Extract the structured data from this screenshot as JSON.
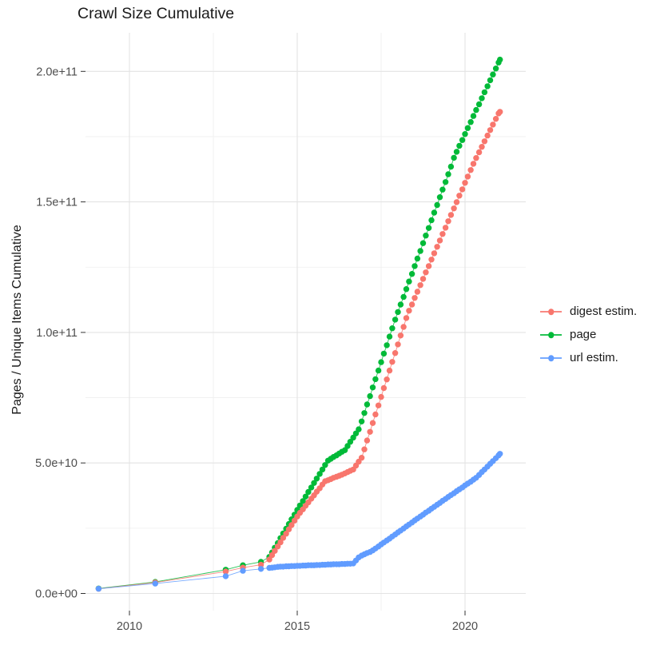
{
  "title": "Crawl Size Cumulative",
  "axes": {
    "y_title": "Pages / Unique Items Cumulative",
    "x_title": "",
    "y_ticks": [
      {
        "v": 0,
        "label": "0.0e+00"
      },
      {
        "v": 50,
        "label": "5.0e+10"
      },
      {
        "v": 100,
        "label": "1.0e+11"
      },
      {
        "v": 150,
        "label": "1.5e+11"
      },
      {
        "v": 200,
        "label": "2.0e+11"
      }
    ],
    "y_minor": [
      25,
      75,
      125,
      175
    ],
    "x_ticks": [
      {
        "v": 2010,
        "label": "2010"
      },
      {
        "v": 2015,
        "label": "2015"
      },
      {
        "v": 2020,
        "label": "2020"
      }
    ],
    "x_minor": [
      2012.5,
      2017.5
    ]
  },
  "legend": {
    "entries": [
      {
        "label": "digest estim.",
        "color": "#F8766D"
      },
      {
        "label": "page",
        "color": "#00BA38"
      },
      {
        "label": "url estim.",
        "color": "#619CFF"
      }
    ]
  },
  "chart_data": {
    "type": "scatter",
    "style": "points connected by thin lines (ggplot geom_point + geom_line)",
    "title": "Crawl Size Cumulative",
    "xlabel": "",
    "ylabel": "Pages / Unique Items Cumulative",
    "x_unit": "year (decimal)",
    "y_value_unit": "billions of items (1e9); axis labels shown in scientific notation",
    "xlim": [
      2008.7,
      2021.9
    ],
    "ylim_billions": [
      0,
      215
    ],
    "grid": true,
    "legend_position": "right-center",
    "draw_order": [
      "page",
      "digest estim.",
      "url estim."
    ],
    "series": [
      {
        "name": "digest estim.",
        "color": "#F8766D",
        "points": [
          [
            2009.08,
            1.8
          ],
          [
            2010.77,
            4.2
          ],
          [
            2012.87,
            8.4
          ],
          [
            2013.38,
            9.9
          ],
          [
            2013.92,
            11.0
          ],
          [
            2014.17,
            13.0
          ],
          [
            2014.25,
            14.7
          ],
          [
            2014.33,
            16.3
          ],
          [
            2014.42,
            18.0
          ],
          [
            2014.5,
            19.6
          ],
          [
            2014.58,
            21.3
          ],
          [
            2014.67,
            22.9
          ],
          [
            2014.75,
            24.6
          ],
          [
            2014.83,
            26.2
          ],
          [
            2014.92,
            27.9
          ],
          [
            2015.0,
            29.5
          ],
          [
            2015.08,
            30.9
          ],
          [
            2015.17,
            32.2
          ],
          [
            2015.25,
            33.6
          ],
          [
            2015.33,
            34.9
          ],
          [
            2015.42,
            36.3
          ],
          [
            2015.5,
            37.6
          ],
          [
            2015.58,
            39.0
          ],
          [
            2015.67,
            40.3
          ],
          [
            2015.75,
            41.7
          ],
          [
            2015.83,
            43.0
          ],
          [
            2015.92,
            43.4
          ],
          [
            2016.0,
            43.8
          ],
          [
            2016.08,
            44.3
          ],
          [
            2016.17,
            44.7
          ],
          [
            2016.25,
            45.1
          ],
          [
            2016.33,
            45.5
          ],
          [
            2016.42,
            46.0
          ],
          [
            2016.5,
            46.5
          ],
          [
            2016.58,
            47.0
          ],
          [
            2016.67,
            47.5
          ],
          [
            2016.75,
            49.0
          ],
          [
            2016.83,
            50.5
          ],
          [
            2016.92,
            52.0
          ],
          [
            2017.0,
            55.2
          ],
          [
            2017.08,
            58.6
          ],
          [
            2017.17,
            61.9
          ],
          [
            2017.25,
            65.3
          ],
          [
            2017.33,
            68.6
          ],
          [
            2017.42,
            72.0
          ],
          [
            2017.5,
            75.3
          ],
          [
            2017.58,
            78.7
          ],
          [
            2017.67,
            82.0
          ],
          [
            2017.75,
            85.4
          ],
          [
            2017.83,
            88.7
          ],
          [
            2017.92,
            92.1
          ],
          [
            2018.0,
            95.4
          ],
          [
            2018.08,
            98.8
          ],
          [
            2018.17,
            102.1
          ],
          [
            2018.25,
            105.5
          ],
          [
            2018.33,
            108.3
          ],
          [
            2018.42,
            110.7
          ],
          [
            2018.5,
            113.2
          ],
          [
            2018.58,
            115.6
          ],
          [
            2018.67,
            118.1
          ],
          [
            2018.75,
            120.5
          ],
          [
            2018.83,
            123.0
          ],
          [
            2018.92,
            125.4
          ],
          [
            2019.0,
            127.9
          ],
          [
            2019.08,
            130.3
          ],
          [
            2019.17,
            132.8
          ],
          [
            2019.25,
            135.2
          ],
          [
            2019.33,
            137.7
          ],
          [
            2019.42,
            140.1
          ],
          [
            2019.5,
            142.6
          ],
          [
            2019.58,
            145.0
          ],
          [
            2019.67,
            147.5
          ],
          [
            2019.75,
            149.9
          ],
          [
            2019.83,
            152.4
          ],
          [
            2019.92,
            154.8
          ],
          [
            2020.0,
            157.3
          ],
          [
            2020.08,
            159.7
          ],
          [
            2020.17,
            162.2
          ],
          [
            2020.25,
            164.6
          ],
          [
            2020.33,
            166.8
          ],
          [
            2020.42,
            169.0
          ],
          [
            2020.5,
            171.1
          ],
          [
            2020.58,
            173.2
          ],
          [
            2020.67,
            175.4
          ],
          [
            2020.75,
            177.5
          ],
          [
            2020.83,
            179.6
          ],
          [
            2020.92,
            181.8
          ],
          [
            2021.0,
            183.9
          ],
          [
            2021.04,
            184.5
          ]
        ]
      },
      {
        "name": "page",
        "color": "#00BA38",
        "points": [
          [
            2009.08,
            1.9
          ],
          [
            2010.77,
            4.4
          ],
          [
            2012.87,
            9.1
          ],
          [
            2013.38,
            10.8
          ],
          [
            2013.92,
            12.1
          ],
          [
            2014.17,
            14.0
          ],
          [
            2014.25,
            15.7
          ],
          [
            2014.33,
            17.5
          ],
          [
            2014.42,
            19.3
          ],
          [
            2014.5,
            21.2
          ],
          [
            2014.58,
            23.0
          ],
          [
            2014.67,
            24.8
          ],
          [
            2014.75,
            26.6
          ],
          [
            2014.83,
            28.4
          ],
          [
            2014.92,
            30.2
          ],
          [
            2015.0,
            32.0
          ],
          [
            2015.08,
            33.7
          ],
          [
            2015.17,
            35.4
          ],
          [
            2015.25,
            37.1
          ],
          [
            2015.33,
            38.9
          ],
          [
            2015.42,
            40.6
          ],
          [
            2015.5,
            42.3
          ],
          [
            2015.58,
            44.0
          ],
          [
            2015.67,
            45.8
          ],
          [
            2015.75,
            47.5
          ],
          [
            2015.83,
            49.2
          ],
          [
            2015.92,
            50.9
          ],
          [
            2016.0,
            51.6
          ],
          [
            2016.08,
            52.3
          ],
          [
            2016.17,
            52.9
          ],
          [
            2016.25,
            53.6
          ],
          [
            2016.33,
            54.3
          ],
          [
            2016.42,
            54.9
          ],
          [
            2016.5,
            56.5
          ],
          [
            2016.58,
            58.1
          ],
          [
            2016.67,
            59.7
          ],
          [
            2016.75,
            61.3
          ],
          [
            2016.83,
            62.9
          ],
          [
            2016.92,
            65.9
          ],
          [
            2017.0,
            69.1
          ],
          [
            2017.08,
            72.4
          ],
          [
            2017.17,
            75.6
          ],
          [
            2017.25,
            78.9
          ],
          [
            2017.33,
            82.1
          ],
          [
            2017.42,
            85.4
          ],
          [
            2017.5,
            88.6
          ],
          [
            2017.58,
            91.9
          ],
          [
            2017.67,
            95.1
          ],
          [
            2017.75,
            98.4
          ],
          [
            2017.83,
            101.6
          ],
          [
            2017.92,
            104.9
          ],
          [
            2018.0,
            107.8
          ],
          [
            2018.08,
            110.7
          ],
          [
            2018.17,
            113.6
          ],
          [
            2018.25,
            116.6
          ],
          [
            2018.33,
            119.5
          ],
          [
            2018.42,
            122.4
          ],
          [
            2018.5,
            125.4
          ],
          [
            2018.58,
            128.3
          ],
          [
            2018.67,
            131.2
          ],
          [
            2018.75,
            134.2
          ],
          [
            2018.83,
            137.1
          ],
          [
            2018.92,
            140.0
          ],
          [
            2019.0,
            143.0
          ],
          [
            2019.08,
            145.9
          ],
          [
            2019.17,
            148.8
          ],
          [
            2019.25,
            151.8
          ],
          [
            2019.33,
            154.7
          ],
          [
            2019.42,
            157.6
          ],
          [
            2019.5,
            160.6
          ],
          [
            2019.58,
            163.5
          ],
          [
            2019.67,
            166.9
          ],
          [
            2019.75,
            169.2
          ],
          [
            2019.83,
            171.5
          ],
          [
            2019.92,
            173.7
          ],
          [
            2020.0,
            176.0
          ],
          [
            2020.08,
            178.3
          ],
          [
            2020.17,
            180.6
          ],
          [
            2020.25,
            182.9
          ],
          [
            2020.33,
            185.2
          ],
          [
            2020.42,
            187.4
          ],
          [
            2020.5,
            189.7
          ],
          [
            2020.58,
            192.0
          ],
          [
            2020.67,
            194.3
          ],
          [
            2020.75,
            196.6
          ],
          [
            2020.83,
            198.8
          ],
          [
            2020.92,
            201.1
          ],
          [
            2021.0,
            203.4
          ],
          [
            2021.04,
            204.5
          ]
        ]
      },
      {
        "name": "url estim.",
        "color": "#619CFF",
        "points": [
          [
            2009.08,
            1.8
          ],
          [
            2010.77,
            3.8
          ],
          [
            2012.87,
            6.6
          ],
          [
            2013.38,
            8.7
          ],
          [
            2013.92,
            9.4
          ],
          [
            2014.17,
            9.8
          ],
          [
            2014.25,
            9.9
          ],
          [
            2014.33,
            10.0
          ],
          [
            2014.42,
            10.2
          ],
          [
            2014.5,
            10.3
          ],
          [
            2014.58,
            10.3
          ],
          [
            2014.67,
            10.4
          ],
          [
            2014.75,
            10.4
          ],
          [
            2014.83,
            10.5
          ],
          [
            2014.92,
            10.5
          ],
          [
            2015.0,
            10.6
          ],
          [
            2015.08,
            10.6
          ],
          [
            2015.17,
            10.7
          ],
          [
            2015.25,
            10.7
          ],
          [
            2015.33,
            10.8
          ],
          [
            2015.42,
            10.8
          ],
          [
            2015.5,
            10.8
          ],
          [
            2015.58,
            10.9
          ],
          [
            2015.67,
            10.9
          ],
          [
            2015.75,
            11.0
          ],
          [
            2015.83,
            11.0
          ],
          [
            2015.92,
            11.1
          ],
          [
            2016.0,
            11.1
          ],
          [
            2016.08,
            11.2
          ],
          [
            2016.17,
            11.2
          ],
          [
            2016.25,
            11.2
          ],
          [
            2016.33,
            11.3
          ],
          [
            2016.42,
            11.3
          ],
          [
            2016.5,
            11.4
          ],
          [
            2016.58,
            11.4
          ],
          [
            2016.67,
            11.5
          ],
          [
            2016.75,
            12.6
          ],
          [
            2016.83,
            13.8
          ],
          [
            2016.92,
            14.5
          ],
          [
            2017.0,
            15.0
          ],
          [
            2017.08,
            15.5
          ],
          [
            2017.17,
            15.9
          ],
          [
            2017.25,
            16.5
          ],
          [
            2017.33,
            17.2
          ],
          [
            2017.42,
            18.0
          ],
          [
            2017.5,
            18.8
          ],
          [
            2017.58,
            19.5
          ],
          [
            2017.67,
            20.3
          ],
          [
            2017.75,
            21.0
          ],
          [
            2017.83,
            21.8
          ],
          [
            2017.92,
            22.6
          ],
          [
            2018.0,
            23.4
          ],
          [
            2018.08,
            24.1
          ],
          [
            2018.17,
            24.9
          ],
          [
            2018.25,
            25.7
          ],
          [
            2018.33,
            26.4
          ],
          [
            2018.42,
            27.2
          ],
          [
            2018.5,
            28.0
          ],
          [
            2018.58,
            28.7
          ],
          [
            2018.67,
            29.5
          ],
          [
            2018.75,
            30.2
          ],
          [
            2018.83,
            31.0
          ],
          [
            2018.92,
            31.7
          ],
          [
            2019.0,
            32.5
          ],
          [
            2019.08,
            33.2
          ],
          [
            2019.17,
            34.0
          ],
          [
            2019.25,
            34.7
          ],
          [
            2019.33,
            35.5
          ],
          [
            2019.42,
            36.2
          ],
          [
            2019.5,
            37.0
          ],
          [
            2019.58,
            37.7
          ],
          [
            2019.67,
            38.4
          ],
          [
            2019.75,
            39.2
          ],
          [
            2019.83,
            39.9
          ],
          [
            2019.92,
            40.6
          ],
          [
            2020.0,
            41.4
          ],
          [
            2020.08,
            42.1
          ],
          [
            2020.17,
            42.8
          ],
          [
            2020.25,
            43.6
          ],
          [
            2020.33,
            44.3
          ],
          [
            2020.42,
            45.4
          ],
          [
            2020.5,
            46.5
          ],
          [
            2020.58,
            47.5
          ],
          [
            2020.67,
            48.6
          ],
          [
            2020.75,
            49.7
          ],
          [
            2020.83,
            50.7
          ],
          [
            2020.92,
            51.8
          ],
          [
            2021.0,
            52.9
          ],
          [
            2021.04,
            53.5
          ]
        ]
      }
    ]
  },
  "style": {
    "grid_major_color": "#e3e3e3",
    "grid_minor_color": "#efefef",
    "tick_color": "#333333",
    "point_radius": 3.7
  }
}
